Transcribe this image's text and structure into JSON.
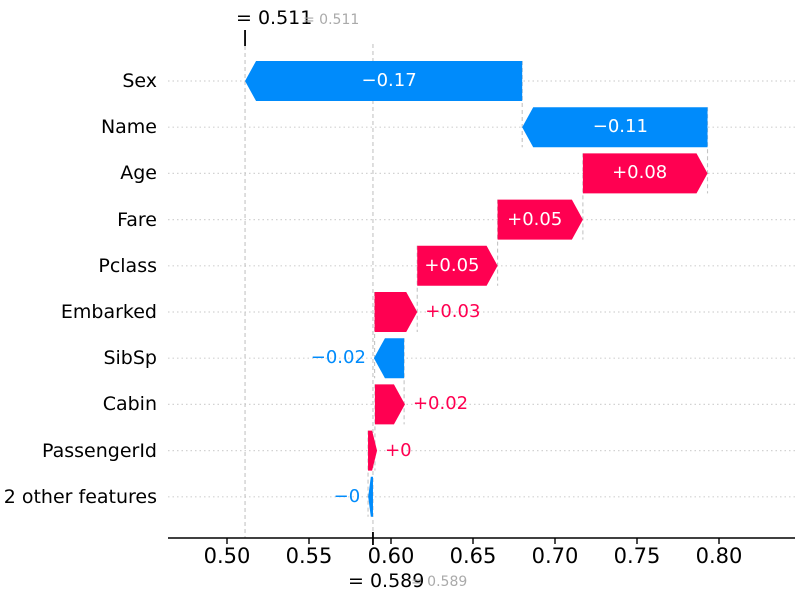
{
  "annotations": {
    "fx_black": "= 0.511",
    "fx_gray": "= 0.511",
    "base_black": "= 0.589",
    "base_gray": "= 0.589"
  },
  "colors": {
    "positive": "#ff0051",
    "negative": "#008bfb",
    "bar_text": "#ffffff",
    "grid_dotted": "#d2d2d2",
    "dashed_line": "#c4c4c4",
    "axis": "#000000",
    "annotation_gray": "#aaaaaa",
    "text": "#000000"
  },
  "chart_data": {
    "type": "bar",
    "subtype": "shap-waterfall",
    "title": "",
    "xlabel": "",
    "ylabel": "",
    "grid": "dotted-horizontal",
    "fx_value": 0.511,
    "base_value": 0.589,
    "x_range": [
      0.464,
      0.846
    ],
    "x_ticks": [
      {
        "v": 0.5,
        "label": "0.50"
      },
      {
        "v": 0.55,
        "label": "0.55"
      },
      {
        "v": 0.6,
        "label": "0.60"
      },
      {
        "v": 0.65,
        "label": "0.65"
      },
      {
        "v": 0.7,
        "label": "0.70"
      },
      {
        "v": 0.75,
        "label": "0.75"
      },
      {
        "v": 0.8,
        "label": "0.80"
      }
    ],
    "features": [
      {
        "label": "Sex",
        "value": -0.17,
        "value_label": "−0.17",
        "sign": "neg",
        "span": [
          0.511,
          0.68
        ],
        "placement": "inside"
      },
      {
        "label": "Name",
        "value": -0.11,
        "value_label": "−0.11",
        "sign": "neg",
        "span": [
          0.68,
          0.793
        ],
        "placement": "inside"
      },
      {
        "label": "Age",
        "value": 0.08,
        "value_label": "+0.08",
        "sign": "pos",
        "span": [
          0.717,
          0.793
        ],
        "placement": "inside"
      },
      {
        "label": "Fare",
        "value": 0.05,
        "value_label": "+0.05",
        "sign": "pos",
        "span": [
          0.665,
          0.717
        ],
        "placement": "inside"
      },
      {
        "label": "Pclass",
        "value": 0.05,
        "value_label": "+0.05",
        "sign": "pos",
        "span": [
          0.616,
          0.665
        ],
        "placement": "inside"
      },
      {
        "label": "Embarked",
        "value": 0.03,
        "value_label": "+0.03",
        "sign": "pos",
        "span": [
          0.59,
          0.616
        ],
        "placement": "right"
      },
      {
        "label": "SibSp",
        "value": -0.02,
        "value_label": "−0.02",
        "sign": "neg",
        "span": [
          0.5896,
          0.608
        ],
        "placement": "left"
      },
      {
        "label": "Cabin",
        "value": 0.02,
        "value_label": "+0.02",
        "sign": "pos",
        "span": [
          0.5902,
          0.6085
        ],
        "placement": "right"
      },
      {
        "label": "PassengerId",
        "value": 0.0,
        "value_label": "+0",
        "sign": "pos",
        "span": [
          0.586,
          0.5915
        ],
        "placement": "right"
      },
      {
        "label": "2 other features",
        "value": -0.0,
        "value_label": "−0",
        "sign": "neg",
        "span": [
          0.5861,
          0.589
        ],
        "placement": "left"
      }
    ]
  }
}
